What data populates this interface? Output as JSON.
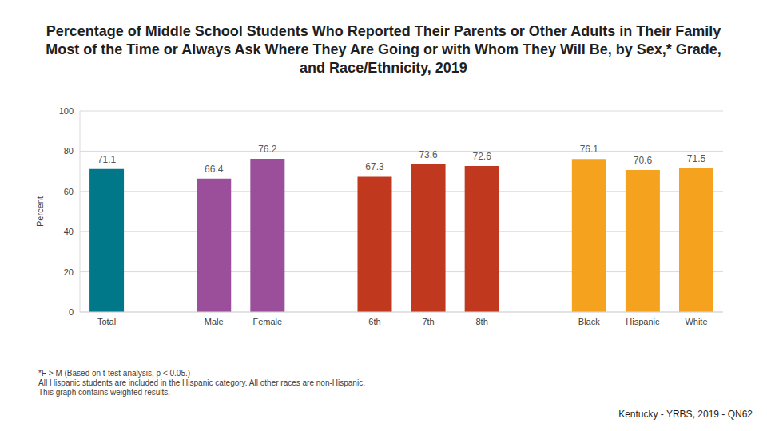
{
  "chart_data": {
    "type": "bar",
    "title": "Percentage of Middle School Students Who Reported Their Parents or Other Adults in Their Family Most of the Time or Always Ask Where They Are Going or with Whom They Will Be, by Sex,* Grade, and Race/Ethnicity, 2019",
    "y_label": "Percent",
    "categories": [
      "Total",
      null,
      "Male",
      "Female",
      null,
      "6th",
      "7th",
      "8th",
      null,
      "Black",
      "Hispanic",
      "White"
    ],
    "values": [
      71.1,
      null,
      66.4,
      76.2,
      null,
      67.3,
      73.6,
      72.6,
      null,
      76.1,
      70.6,
      71.5
    ],
    "colors": [
      "#00788a",
      null,
      "#9b4f9b",
      "#9b4f9b",
      null,
      "#c0391e",
      "#c0391e",
      "#c0391e",
      null,
      "#f5a31e",
      "#f5a31e",
      "#f5a31e"
    ],
    "ylim": [
      0,
      100
    ],
    "yticks": [
      0,
      20,
      40,
      60,
      80,
      100
    ],
    "grid": true,
    "data_labels": true,
    "notes": [
      "*F > M (Based on t-test analysis, p < 0.05.)",
      "All Hispanic students are included in the Hispanic category.  All other races are non-Hispanic.",
      "This graph contains weighted results."
    ],
    "source": "Kentucky - YRBS, 2019 - QN62"
  }
}
